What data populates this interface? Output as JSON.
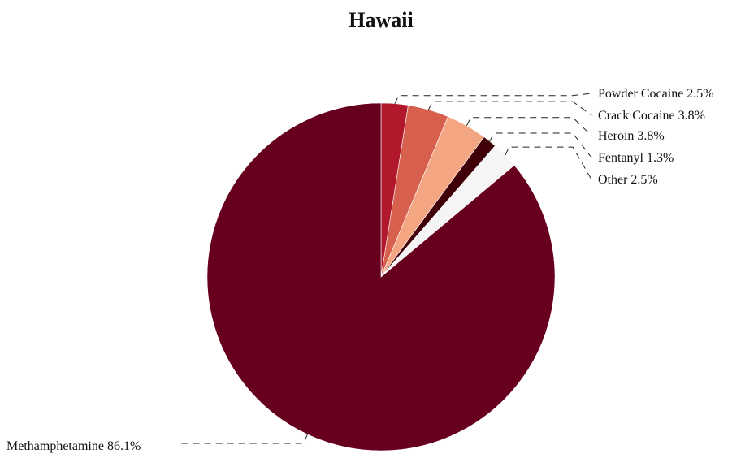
{
  "chart_data": {
    "type": "pie",
    "title": "Hawaii",
    "slices": [
      {
        "label": "Powder Cocaine",
        "value": 2.5,
        "label_text": "Powder Cocaine 2.5%",
        "color": "#b2182b"
      },
      {
        "label": "Crack Cocaine",
        "value": 3.8,
        "label_text": "Crack Cocaine 3.8%",
        "color": "#d6604d"
      },
      {
        "label": "Heroin",
        "value": 3.8,
        "label_text": "Heroin 3.8%",
        "color": "#f4a582"
      },
      {
        "label": "Fentanyl",
        "value": 1.3,
        "label_text": "Fentanyl 1.3%",
        "color": "#3f0008"
      },
      {
        "label": "Other",
        "value": 2.5,
        "label_text": "Other 2.5%",
        "color": "#f5f5f5"
      },
      {
        "label": "Methamphetamine",
        "value": 86.1,
        "label_text": "Methamphetamine 86.1%",
        "color": "#67001f"
      }
    ],
    "start": "12 o'clock",
    "direction": "clockwise",
    "legend": "none"
  }
}
